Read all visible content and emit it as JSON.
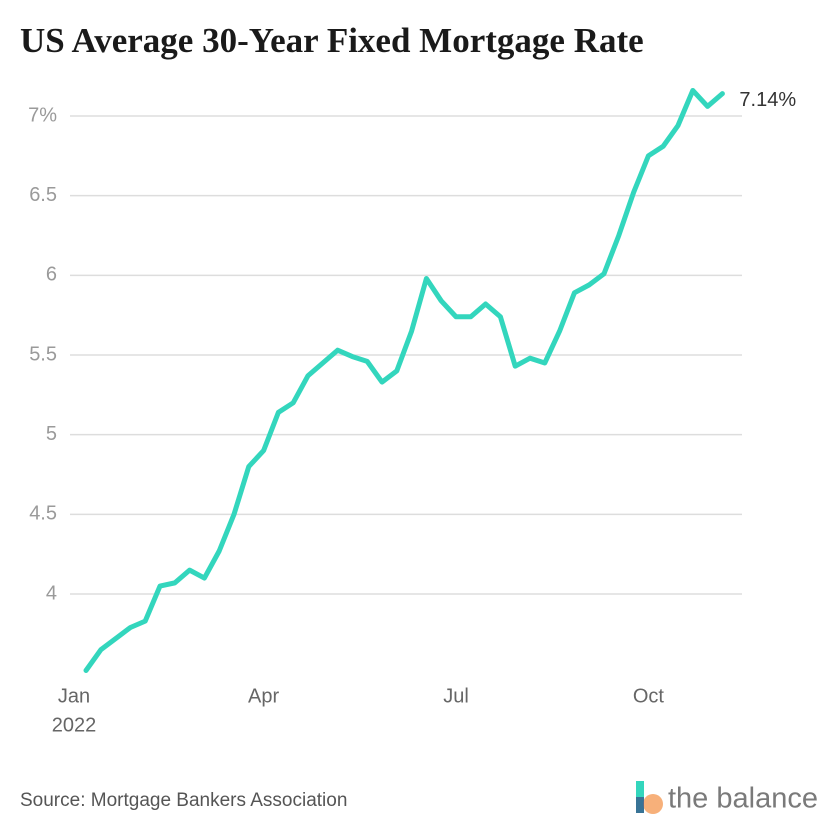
{
  "chart_data": {
    "type": "line",
    "title": "US Average 30-Year Fixed Mortgage Rate",
    "source": "Source: Mortgage Bankers Association",
    "brand": "the balance",
    "categories": [
      "Jan",
      null,
      null,
      null,
      null,
      null,
      null,
      null,
      null,
      null,
      null,
      null,
      "Apr",
      null,
      null,
      null,
      null,
      null,
      null,
      null,
      null,
      null,
      null,
      null,
      null,
      "Jul",
      null,
      null,
      null,
      null,
      null,
      null,
      null,
      null,
      null,
      null,
      null,
      null,
      "Oct",
      null,
      null,
      null,
      null,
      null
    ],
    "year_label": "2022",
    "series": [
      {
        "name": "30-Year Fixed",
        "color": "#33d6bd",
        "values": [
          3.52,
          3.65,
          3.72,
          3.79,
          3.83,
          4.05,
          4.07,
          4.15,
          4.1,
          4.27,
          4.5,
          4.8,
          4.9,
          5.14,
          5.2,
          5.37,
          5.45,
          5.53,
          5.49,
          5.46,
          5.33,
          5.4,
          5.65,
          5.98,
          5.84,
          5.74,
          5.74,
          5.82,
          5.74,
          5.43,
          5.48,
          5.45,
          5.65,
          5.89,
          5.94,
          6.01,
          6.25,
          6.52,
          6.75,
          6.81,
          6.94,
          7.16,
          7.06,
          7.14
        ],
        "value_labels": [
          null,
          null,
          null,
          null,
          null,
          null,
          null,
          null,
          null,
          null,
          null,
          null,
          null,
          null,
          null,
          null,
          null,
          null,
          null,
          null,
          null,
          null,
          null,
          null,
          null,
          null,
          null,
          null,
          null,
          null,
          null,
          null,
          null,
          null,
          null,
          null,
          null,
          null,
          null,
          null,
          null,
          null,
          null,
          "7.14%"
        ]
      }
    ],
    "ylim": [
      3.5,
      7.2
    ],
    "yticks": [
      4,
      4.5,
      5,
      5.5,
      6,
      6.5,
      {
        "value": 7,
        "label": "7%"
      }
    ],
    "grid": true
  }
}
